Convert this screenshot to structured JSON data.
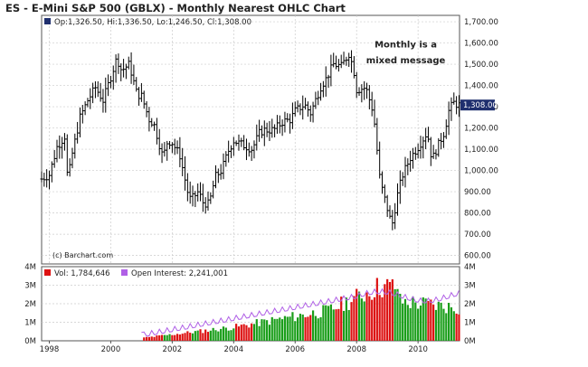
{
  "title": "ES - E-Mini S&P 500 (GBLX) - Monthly Nearest OHLC Chart",
  "ohlc_label": "Op:1,326.50, Hi:1,336.50, Lo:1,246.50, Cl:1,308.00",
  "current_price": "1,308.00",
  "annotation": "Monthly is a mixed message",
  "copyright": "(c) Barchart.com",
  "colors": {
    "panel_bg": "#ffffff",
    "grid": "#cccccc",
    "bars": "#000000",
    "vol_up": "#1a9e1a",
    "vol_down": "#dd1111",
    "open_interest": "#b060e6",
    "header": "#1f2f6e",
    "price_tag_bg": "#1f2f6e"
  },
  "chart_data": [
    {
      "type": "ohlc",
      "x_ticks": [
        "1998",
        "2000",
        "2002",
        "2004",
        "2006",
        "2008",
        "2010"
      ],
      "y_ticks": [
        "600.00",
        "700.00",
        "800.00",
        "900.00",
        "1,000.00",
        "1,100.00",
        "1,200.00",
        "1,300.00",
        "1,400.00",
        "1,500.00",
        "1,600.00",
        "1,700.00"
      ],
      "ylim": [
        560,
        1730
      ],
      "xlim": [
        1997.75,
        2011.35
      ],
      "series": [
        {
          "name": "ES",
          "points": [
            [
              1997.75,
              960
            ],
            [
              1998.0,
              980
            ],
            [
              1998.25,
              1110
            ],
            [
              1998.5,
              1160
            ],
            [
              1998.6,
              950
            ],
            [
              1998.75,
              1080
            ],
            [
              1999.0,
              1250
            ],
            [
              1999.25,
              1330
            ],
            [
              1999.5,
              1390
            ],
            [
              1999.75,
              1330
            ],
            [
              2000.0,
              1440
            ],
            [
              2000.2,
              1530
            ],
            [
              2000.35,
              1470
            ],
            [
              2000.6,
              1500
            ],
            [
              2000.85,
              1360
            ],
            [
              2001.0,
              1350
            ],
            [
              2001.25,
              1240
            ],
            [
              2001.4,
              1220
            ],
            [
              2001.7,
              1060
            ],
            [
              2001.85,
              1140
            ],
            [
              2002.0,
              1130
            ],
            [
              2002.25,
              1070
            ],
            [
              2002.5,
              900
            ],
            [
              2002.6,
              860
            ],
            [
              2002.85,
              900
            ],
            [
              2003.0,
              850
            ],
            [
              2003.2,
              840
            ],
            [
              2003.4,
              970
            ],
            [
              2003.6,
              1000
            ],
            [
              2003.85,
              1100
            ],
            [
              2004.0,
              1140
            ],
            [
              2004.3,
              1120
            ],
            [
              2004.6,
              1100
            ],
            [
              2004.85,
              1180
            ],
            [
              2005.0,
              1190
            ],
            [
              2005.3,
              1190
            ],
            [
              2005.6,
              1230
            ],
            [
              2005.85,
              1240
            ],
            [
              2006.0,
              1280
            ],
            [
              2006.3,
              1310
            ],
            [
              2006.5,
              1270
            ],
            [
              2006.85,
              1400
            ],
            [
              2007.0,
              1430
            ],
            [
              2007.25,
              1500
            ],
            [
              2007.5,
              1490
            ],
            [
              2007.75,
              1550
            ],
            [
              2007.9,
              1480
            ],
            [
              2008.0,
              1380
            ],
            [
              2008.3,
              1390
            ],
            [
              2008.55,
              1270
            ],
            [
              2008.75,
              970
            ],
            [
              2008.85,
              900
            ],
            [
              2009.0,
              820
            ],
            [
              2009.15,
              740
            ],
            [
              2009.35,
              900
            ],
            [
              2009.5,
              980
            ],
            [
              2009.75,
              1060
            ],
            [
              2010.0,
              1110
            ],
            [
              2010.3,
              1180
            ],
            [
              2010.45,
              1050
            ],
            [
              2010.6,
              1100
            ],
            [
              2010.85,
              1180
            ],
            [
              2011.0,
              1280
            ],
            [
              2011.15,
              1320
            ],
            [
              2011.3,
              1308
            ]
          ]
        }
      ]
    },
    {
      "type": "bar",
      "y_ticks_left": [
        "0M",
        "1M",
        "2M",
        "3M",
        "4M"
      ],
      "y_ticks_right": [
        "0M",
        "1M",
        "2M",
        "3M",
        "4M"
      ],
      "ylim": [
        0,
        4
      ],
      "series": [
        {
          "name": "Vol: 1,784,646",
          "color": "#dd1111"
        },
        {
          "name": "Open Interest: 2,241,001",
          "color": "#b060e6"
        }
      ]
    }
  ]
}
